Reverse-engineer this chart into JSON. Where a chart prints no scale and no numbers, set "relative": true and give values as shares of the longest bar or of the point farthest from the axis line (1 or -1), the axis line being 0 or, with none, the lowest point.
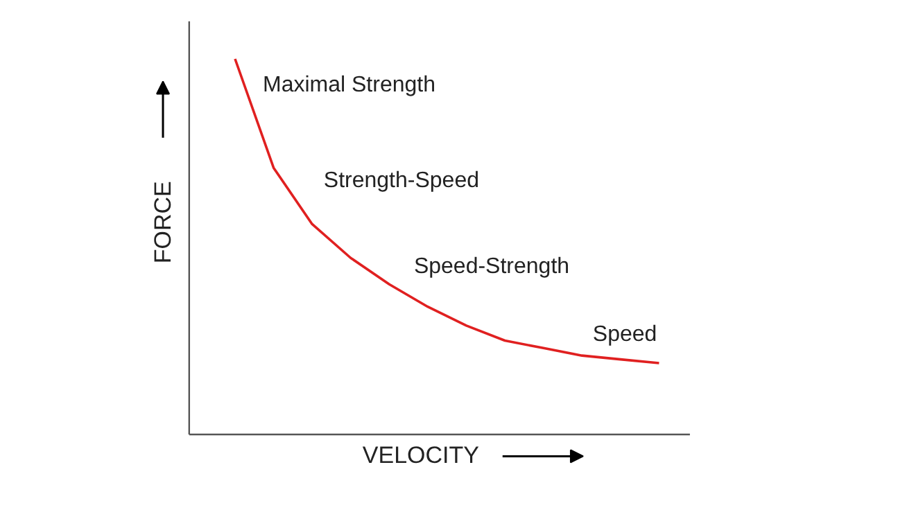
{
  "chart_data": {
    "type": "line",
    "relative": true,
    "xlabel": "VELOCITY",
    "ylabel": "FORCE",
    "categories": [
      null,
      null,
      null,
      null,
      null,
      null,
      null,
      null,
      null,
      null,
      null,
      null
    ],
    "series": [
      {
        "color": "#e02020",
        "values": [
          1.0,
          0.71,
          0.56,
          0.47,
          0.4,
          0.34,
          0.29,
          0.25,
          0.23,
          0.21,
          0.2,
          0.19
        ]
      }
    ],
    "annotations": [
      "Maximal Strength",
      "Strength-Speed",
      "Speed-Strength",
      "Speed"
    ]
  }
}
